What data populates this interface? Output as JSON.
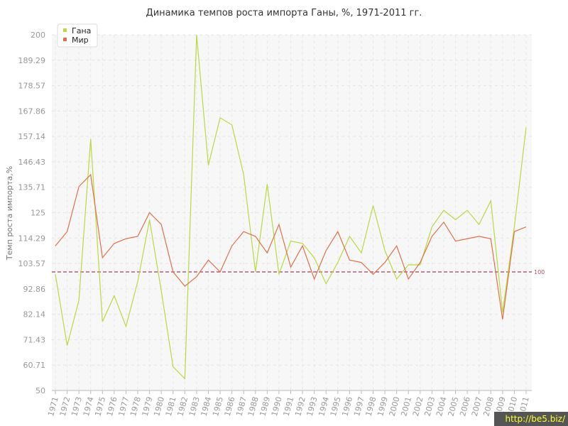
{
  "chart_data": {
    "type": "line",
    "title": "Динамика темпов роста импорта Ганы, %, 1971-2011 гг.",
    "ylabel": "Темп роста импорта,%",
    "xlabel": "",
    "ylim": [
      50,
      200
    ],
    "yticks": [
      "50",
      "60.71",
      "71.43",
      "82.14",
      "92.86",
      "103.57",
      "114.29",
      "125",
      "135.71",
      "146.43",
      "157.14",
      "167.86",
      "178.57",
      "189.29",
      "200"
    ],
    "yticks_values": [
      50,
      60.71,
      71.43,
      82.14,
      92.86,
      103.57,
      114.29,
      125,
      135.71,
      146.43,
      157.14,
      167.86,
      178.57,
      189.29,
      200
    ],
    "x": [
      "1971",
      "1972",
      "1973",
      "1974",
      "1975",
      "1976",
      "1977",
      "1978",
      "1979",
      "1980",
      "1981",
      "1982",
      "1983",
      "1984",
      "1985",
      "1986",
      "1987",
      "1988",
      "1989",
      "1990",
      "1991",
      "1992",
      "1993",
      "1994",
      "1995",
      "1996",
      "1997",
      "1998",
      "1999",
      "2000",
      "2001",
      "2002",
      "2003",
      "2004",
      "2005",
      "2006",
      "2007",
      "2008",
      "2009",
      "2010",
      "2011"
    ],
    "series": [
      {
        "name": "Гана",
        "color": "#b8d941",
        "values": [
          99,
          69,
          88,
          156,
          79,
          90,
          77,
          96,
          122,
          92,
          60,
          55,
          200,
          145,
          165,
          162,
          141,
          100,
          137,
          99,
          113,
          112,
          106,
          95,
          104,
          115,
          108,
          128,
          109,
          97,
          103,
          103,
          119,
          126,
          122,
          126,
          120,
          130,
          83,
          119,
          161
        ]
      },
      {
        "name": "Мир",
        "color": "#e0704a",
        "values": [
          111,
          117,
          136,
          141,
          106,
          112,
          114,
          115,
          125,
          120,
          100,
          94,
          98,
          105,
          100,
          111,
          117,
          115,
          108,
          120,
          102,
          111,
          97,
          109,
          117,
          105,
          104,
          99,
          104,
          111,
          97,
          104,
          115,
          121,
          113,
          114,
          115,
          114,
          80,
          117,
          119
        ]
      }
    ],
    "reference_line": {
      "value": 100,
      "label": "100",
      "color": "#a04060"
    },
    "grid": true,
    "legend_position": "top-left"
  },
  "watermark": "http://be5.biz/"
}
